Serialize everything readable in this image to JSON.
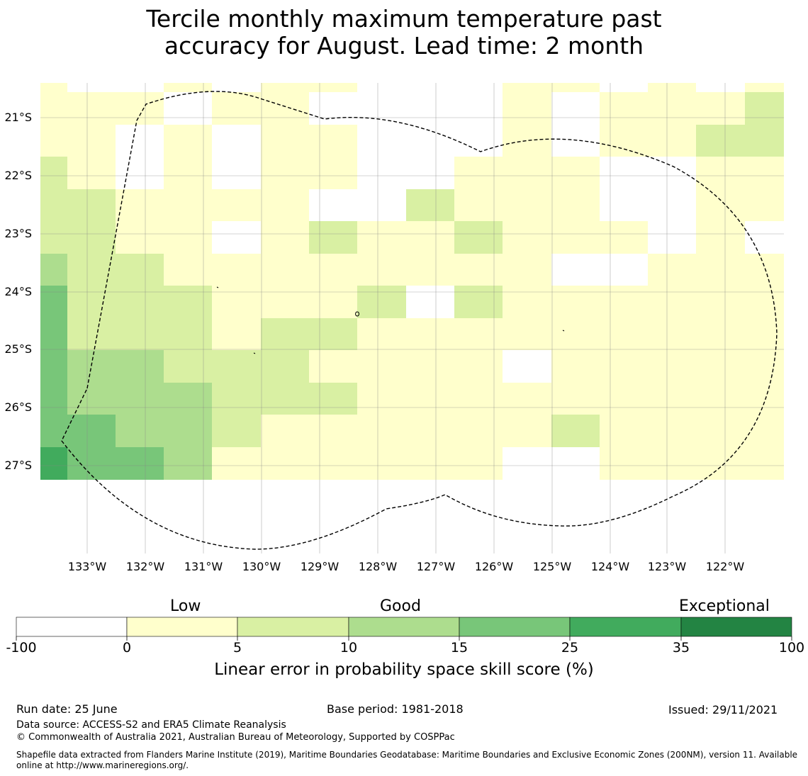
{
  "title_line1": "Tercile monthly maximum temperature past",
  "title_line2": "accuracy for August. Lead time: 2 month",
  "lon_labels": [
    "133°W",
    "132°W",
    "131°W",
    "130°W",
    "129°W",
    "128°W",
    "127°W",
    "126°W",
    "125°W",
    "124°W",
    "123°W",
    "122°W"
  ],
  "lat_labels": [
    "21°S",
    "22°S",
    "23°S",
    "24°S",
    "25°S",
    "26°S",
    "27°S"
  ],
  "legend": {
    "categories": [
      "Low",
      "Good",
      "Exceptional"
    ],
    "ticks": [
      "-100",
      "0",
      "5",
      "10",
      "15",
      "25",
      "35",
      "100"
    ],
    "colors": [
      "#ffffff",
      "#ffffcc",
      "#d9f0a3",
      "#addd8e",
      "#78c679",
      "#41ab5d",
      "#238443"
    ],
    "label": "Linear error in probability space skill score (%)"
  },
  "grid": {
    "levels": {
      "0": "#ffffff",
      "1": "#ffffcc",
      "2": "#d9f0a3",
      "3": "#addd8e",
      "4": "#78c679",
      "5": "#41ab5d"
    },
    "rows": [
      "1001011000110101",
      "1110110000101112",
      "1101011000101122",
      "2101011001110011",
      "2211110021110011",
      "2211012112111010",
      "3221111111100111",
      "4222111202111111",
      "4222122111111111",
      "4332221111011111",
      "4333222111111111",
      "4433211111121111",
      "5443111111001111"
    ]
  },
  "footer": {
    "run_date": "Run date: 25 June",
    "base_period": "Base period: 1981-2018",
    "issued": "Issued: 29/11/2021",
    "data_source": "Data source: ACCESS-S2 and ERA5 Climate Reanalysis",
    "copyright": "© Commonwealth of Australia 2021, Australian Bureau of Meteorology, Supported by COSPPac",
    "shapefile": "Shapefile data extracted from Flanders Marine Institute (2019), Maritime Boundaries Geodatabase: Maritime Boundaries and Exclusive Economic Zones (200NM), version 11. Available online at http://www.marineregions.org/."
  }
}
